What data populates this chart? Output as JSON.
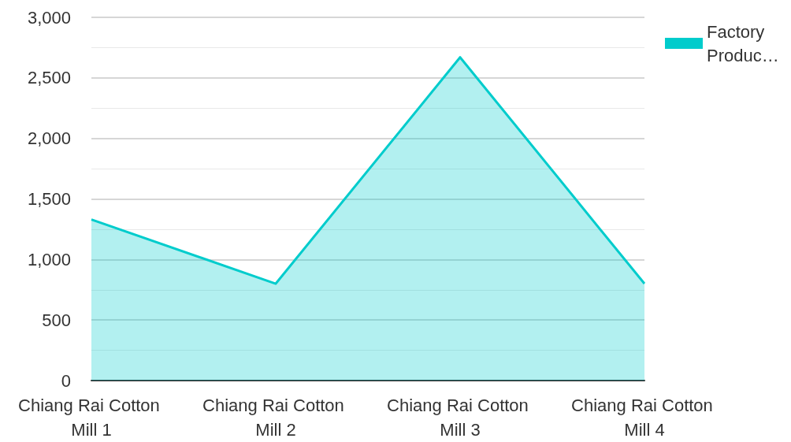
{
  "chart_data": {
    "type": "area",
    "categories": [
      "Chiang Rai Cotton Mill 1",
      "Chiang Rai Cotton Mill 2",
      "Chiang Rai Cotton Mill 3",
      "Chiang Rai Cotton Mill 4"
    ],
    "series": [
      {
        "name": "Factory Produc…",
        "color": "#00cccc",
        "values": [
          1330,
          800,
          2670,
          800
        ]
      }
    ],
    "ylim": [
      0,
      3000
    ],
    "yticks": [
      0,
      500,
      {
        "value": 1000,
        "label": "1,000"
      },
      {
        "value": 1500,
        "label": "1,500"
      },
      {
        "value": 2000,
        "label": "2,000"
      },
      {
        "value": 2500,
        "label": "2,500"
      },
      {
        "value": 3000,
        "label": "3,000"
      }
    ],
    "grid": true,
    "legend": "top right",
    "marker": "none"
  }
}
